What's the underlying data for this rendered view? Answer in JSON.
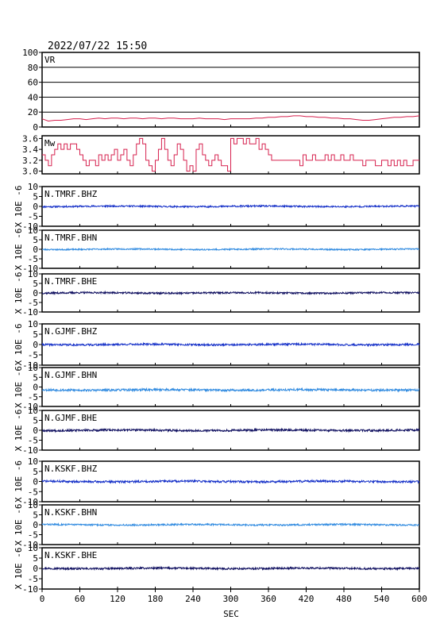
{
  "timestamp": "2022/07/22 15:50",
  "xaxis": {
    "label": "SEC",
    "ticks": [
      0,
      60,
      120,
      180,
      240,
      300,
      360,
      420,
      480,
      540,
      600
    ],
    "range": [
      0,
      600
    ]
  },
  "seismo_unit_label": "X 10E -6",
  "colors": {
    "frame": "#000000",
    "vr_line": "#d6204e",
    "mw_line": "#d6204e",
    "bhz": "#1530c8",
    "bhn": "#2f8ae0",
    "bhe": "#101060"
  },
  "chart_data": [
    {
      "type": "line",
      "label": "VR",
      "ylim": [
        0,
        100
      ],
      "yticks": [
        0,
        20,
        40,
        60,
        80,
        100
      ],
      "grid": true,
      "x": [
        0,
        10,
        20,
        30,
        40,
        50,
        60,
        70,
        80,
        90,
        100,
        110,
        120,
        130,
        140,
        150,
        160,
        170,
        180,
        190,
        200,
        210,
        220,
        230,
        240,
        250,
        260,
        270,
        280,
        290,
        300,
        310,
        320,
        330,
        340,
        350,
        360,
        370,
        380,
        390,
        400,
        410,
        420,
        430,
        440,
        450,
        460,
        470,
        480,
        490,
        500,
        510,
        520,
        530,
        540,
        550,
        560,
        570,
        580,
        590,
        600
      ],
      "values": [
        11,
        8,
        9,
        9,
        10,
        11,
        11,
        10,
        11,
        12,
        11,
        12,
        12,
        11,
        12,
        12,
        11,
        12,
        12,
        11,
        12,
        12,
        11,
        11,
        11,
        12,
        11,
        11,
        11,
        10,
        11,
        11,
        11,
        11,
        12,
        12,
        13,
        13,
        14,
        14,
        15,
        15,
        14,
        14,
        13,
        13,
        12,
        12,
        11,
        11,
        10,
        9,
        9,
        10,
        11,
        12,
        13,
        13,
        14,
        14,
        15
      ]
    },
    {
      "type": "line",
      "label": "Mw",
      "ylim": [
        2.95,
        3.65
      ],
      "yticks": [
        3.0,
        3.2,
        3.4,
        3.6
      ],
      "grid": false,
      "x": [
        0,
        5,
        10,
        15,
        20,
        25,
        30,
        35,
        40,
        45,
        50,
        55,
        60,
        65,
        70,
        75,
        80,
        85,
        90,
        95,
        100,
        105,
        110,
        115,
        120,
        125,
        130,
        135,
        140,
        145,
        150,
        155,
        160,
        165,
        170,
        175,
        180,
        185,
        190,
        195,
        200,
        205,
        210,
        215,
        220,
        225,
        230,
        235,
        240,
        245,
        250,
        255,
        260,
        265,
        270,
        275,
        280,
        285,
        290,
        295,
        300,
        305,
        310,
        315,
        320,
        325,
        330,
        335,
        340,
        345,
        350,
        355,
        360,
        365,
        370,
        375,
        380,
        385,
        390,
        395,
        400,
        405,
        410,
        415,
        420,
        425,
        430,
        435,
        440,
        445,
        450,
        455,
        460,
        465,
        470,
        475,
        480,
        485,
        490,
        495,
        500,
        505,
        510,
        515,
        520,
        525,
        530,
        535,
        540,
        545,
        550,
        555,
        560,
        565,
        570,
        575,
        580,
        585,
        590,
        595,
        600
      ],
      "values": [
        3.3,
        3.2,
        3.1,
        3.3,
        3.4,
        3.5,
        3.4,
        3.5,
        3.4,
        3.5,
        3.5,
        3.4,
        3.3,
        3.2,
        3.1,
        3.2,
        3.2,
        3.1,
        3.3,
        3.2,
        3.3,
        3.2,
        3.3,
        3.4,
        3.2,
        3.3,
        3.4,
        3.2,
        3.1,
        3.3,
        3.5,
        3.6,
        3.5,
        3.2,
        3.1,
        3.0,
        3.2,
        3.4,
        3.6,
        3.4,
        3.2,
        3.1,
        3.3,
        3.5,
        3.4,
        3.2,
        3.0,
        3.1,
        3.0,
        3.4,
        3.5,
        3.3,
        3.2,
        3.1,
        3.2,
        3.3,
        3.2,
        3.1,
        3.1,
        3.0,
        3.6,
        3.5,
        3.6,
        3.6,
        3.5,
        3.6,
        3.5,
        3.5,
        3.6,
        3.4,
        3.5,
        3.4,
        3.3,
        3.2,
        3.2,
        3.2,
        3.2,
        3.2,
        3.2,
        3.2,
        3.2,
        3.2,
        3.1,
        3.3,
        3.2,
        3.2,
        3.3,
        3.2,
        3.2,
        3.2,
        3.3,
        3.2,
        3.3,
        3.2,
        3.2,
        3.3,
        3.2,
        3.2,
        3.3,
        3.2,
        3.2,
        3.2,
        3.1,
        3.2,
        3.2,
        3.2,
        3.1,
        3.1,
        3.2,
        3.2,
        3.1,
        3.2,
        3.1,
        3.2,
        3.1,
        3.2,
        3.1,
        3.1,
        3.2,
        3.2,
        3.2
      ]
    },
    {
      "type": "line",
      "label": "N.TMRF.BHZ",
      "component": "bhz",
      "ylim": [
        -10,
        10
      ],
      "yticks": [
        -10,
        -5,
        0,
        5,
        10
      ],
      "offset": 0.0,
      "amplitude": 0.4,
      "seed": 11
    },
    {
      "type": "line",
      "label": "N.TMRF.BHN",
      "component": "bhn",
      "ylim": [
        -10,
        10
      ],
      "yticks": [
        -10,
        -5,
        0,
        5,
        10
      ],
      "offset": 0.0,
      "amplitude": 0.35,
      "seed": 23
    },
    {
      "type": "line",
      "label": "N.TMRF.BHE",
      "component": "bhe",
      "ylim": [
        -10,
        10
      ],
      "yticks": [
        -10,
        -5,
        0,
        5,
        10
      ],
      "offset": 0.0,
      "amplitude": 0.45,
      "seed": 37
    },
    {
      "type": "line",
      "label": "N.GJMF.BHZ",
      "component": "bhz",
      "ylim": [
        -10,
        10
      ],
      "yticks": [
        -10,
        -5,
        0,
        5,
        10
      ],
      "offset": 0.0,
      "amplitude": 0.45,
      "seed": 41
    },
    {
      "type": "line",
      "label": "N.GJMF.BHN",
      "component": "bhn",
      "ylim": [
        -10,
        10
      ],
      "yticks": [
        -10,
        -5,
        0,
        5,
        10
      ],
      "offset": -1.5,
      "amplitude": 0.55,
      "seed": 53
    },
    {
      "type": "line",
      "label": "N.GJMF.BHE",
      "component": "bhe",
      "ylim": [
        -10,
        10
      ],
      "yticks": [
        -10,
        -5,
        0,
        5,
        10
      ],
      "offset": 0.0,
      "amplitude": 0.5,
      "seed": 67
    },
    {
      "type": "line",
      "label": "N.KSKF.BHZ",
      "component": "bhz",
      "ylim": [
        -10,
        10
      ],
      "yticks": [
        -10,
        -5,
        0,
        5,
        10
      ],
      "offset": 0.0,
      "amplitude": 0.5,
      "seed": 71
    },
    {
      "type": "line",
      "label": "N.KSKF.BHN",
      "component": "bhn",
      "ylim": [
        -10,
        10
      ],
      "yticks": [
        -10,
        -5,
        0,
        5,
        10
      ],
      "offset": 0.0,
      "amplitude": 0.4,
      "seed": 83
    },
    {
      "type": "line",
      "label": "N.KSKF.BHE",
      "component": "bhe",
      "ylim": [
        -10,
        10
      ],
      "yticks": [
        -10,
        -5,
        0,
        5,
        10
      ],
      "offset": 0.0,
      "amplitude": 0.45,
      "seed": 97
    }
  ]
}
